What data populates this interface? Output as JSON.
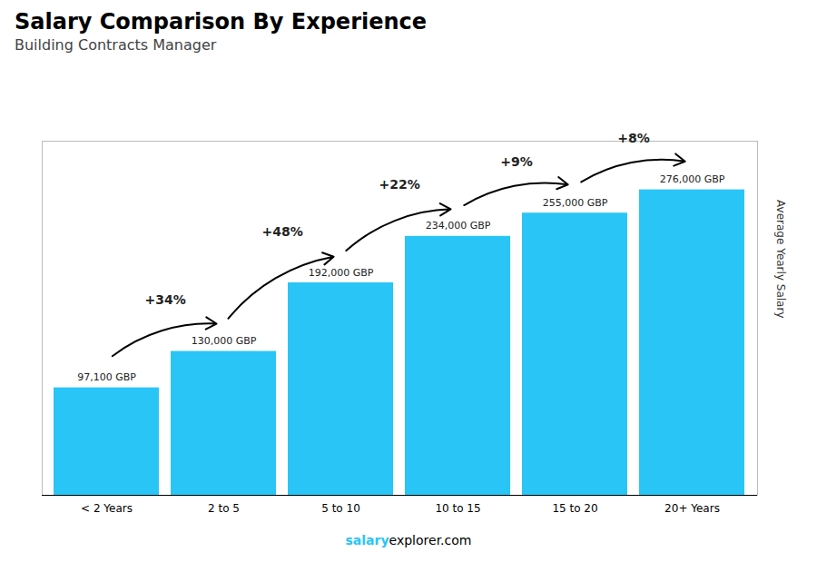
{
  "chart_data": {
    "type": "bar",
    "title": "Salary Comparison By Experience",
    "subtitle": "Building Contracts Manager",
    "categories": [
      "< 2 Years",
      "2 to 5",
      "5 to 10",
      "10 to 15",
      "15 to 20",
      "20+ Years"
    ],
    "values": [
      97100,
      130000,
      192000,
      234000,
      255000,
      276000
    ],
    "value_labels": [
      "97,100 GBP",
      "130,000 GBP",
      "192,000 GBP",
      "234,000 GBP",
      "255,000 GBP",
      "276,000 GBP"
    ],
    "data_labels": true,
    "annotations": [
      "+34%",
      "+48%",
      "+22%",
      "+9%",
      "+8%"
    ],
    "ylabel": "Average Yearly Salary",
    "caption": [
      "salary",
      "explorer.com"
    ],
    "color": "#29c5f6",
    "ylim": [
      0,
      320000
    ],
    "yticks": [],
    "tick_labels": "x"
  }
}
